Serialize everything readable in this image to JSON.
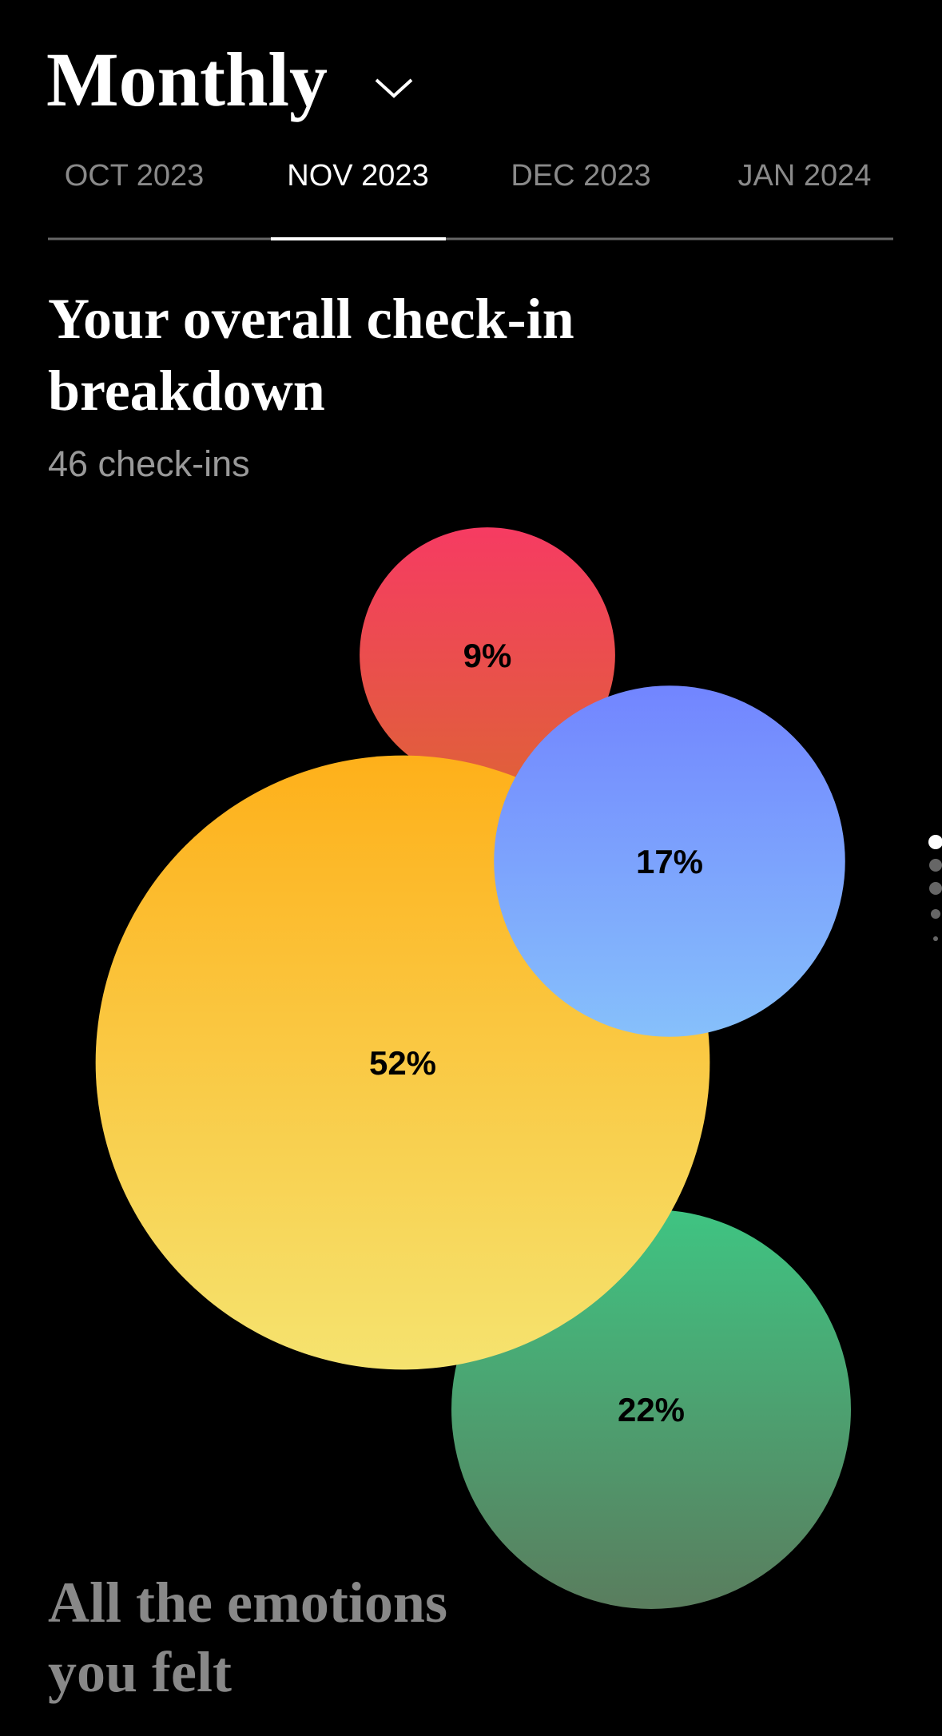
{
  "header": {
    "title": "Monthly"
  },
  "tabs": [
    "OCT 2023",
    "NOV 2023",
    "DEC 2023",
    "JAN 2024"
  ],
  "active_tab": 1,
  "chart_data": {
    "type": "bubble",
    "title": "Your overall check-in breakdown",
    "subtitle": "46 check-ins",
    "values": [
      9,
      17,
      52,
      22
    ],
    "value_labels": [
      "9%",
      "17%",
      "52%",
      "22%"
    ],
    "colors": [
      [
        "#f63b62",
        "#e0603a"
      ],
      [
        "#7285ff",
        "#86c0fb"
      ],
      [
        "#feb01a",
        "#f5e36f"
      ],
      [
        "#3fc482",
        "#5a7d5e"
      ]
    ]
  },
  "footer": {
    "title": "All the emotions you felt"
  }
}
